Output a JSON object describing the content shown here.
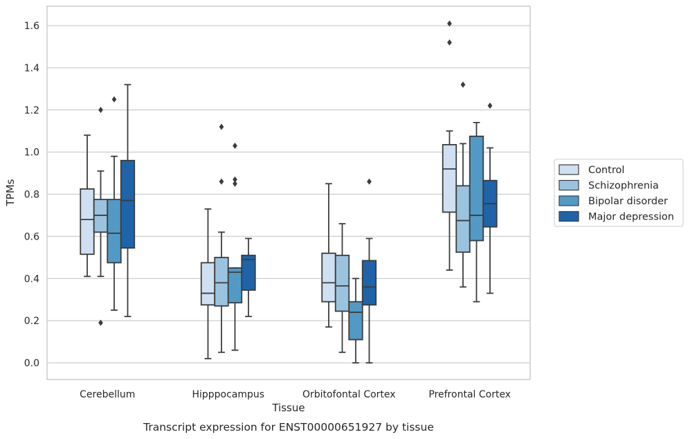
{
  "caption": "Transcript expression for ENST00000651927 by tissue",
  "chart_data": {
    "type": "boxplot",
    "xlabel": "Tissue",
    "ylabel": "TPMs",
    "ylim": [
      -0.08,
      1.69
    ],
    "yticks": [
      0.0,
      0.2,
      0.4,
      0.6,
      0.8,
      1.0,
      1.2,
      1.4,
      1.6
    ],
    "ytick_labels": [
      "0.0",
      "0.2",
      "0.4",
      "0.6",
      "0.8",
      "1.0",
      "1.2",
      "1.4",
      "1.6"
    ],
    "grid": "horizontal",
    "legend_position": "right",
    "categories": [
      "Cerebellum",
      "Hipppocampus",
      "Orbitofontal Cortex",
      "Prefrontal Cortex"
    ],
    "series": [
      {
        "name": "Control",
        "color": "#cfe0f2",
        "boxes": [
          {
            "whislo": 0.41,
            "q1": 0.515,
            "med": 0.68,
            "q3": 0.825,
            "whishi": 1.08,
            "fliers": []
          },
          {
            "whislo": 0.02,
            "q1": 0.275,
            "med": 0.33,
            "q3": 0.475,
            "whishi": 0.73,
            "fliers": []
          },
          {
            "whislo": 0.17,
            "q1": 0.29,
            "med": 0.38,
            "q3": 0.52,
            "whishi": 0.85,
            "fliers": []
          },
          {
            "whislo": 0.44,
            "q1": 0.715,
            "med": 0.92,
            "q3": 1.035,
            "whishi": 1.1,
            "fliers": [
              1.52,
              1.61
            ]
          }
        ]
      },
      {
        "name": "Schizophrenia",
        "color": "#9ac3df",
        "boxes": [
          {
            "whislo": 0.41,
            "q1": 0.62,
            "med": 0.7,
            "q3": 0.775,
            "whishi": 0.91,
            "fliers": [
              0.19,
              1.2
            ]
          },
          {
            "whislo": 0.05,
            "q1": 0.27,
            "med": 0.38,
            "q3": 0.5,
            "whishi": 0.62,
            "fliers": [
              0.86,
              1.12
            ]
          },
          {
            "whislo": 0.05,
            "q1": 0.245,
            "med": 0.365,
            "q3": 0.51,
            "whishi": 0.66,
            "fliers": []
          },
          {
            "whislo": 0.36,
            "q1": 0.525,
            "med": 0.675,
            "q3": 0.84,
            "whishi": 1.04,
            "fliers": [
              1.32
            ]
          }
        ]
      },
      {
        "name": "Bipolar disorder",
        "color": "#5399c6",
        "boxes": [
          {
            "whislo": 0.25,
            "q1": 0.475,
            "med": 0.615,
            "q3": 0.775,
            "whishi": 0.98,
            "fliers": [
              1.25
            ]
          },
          {
            "whislo": 0.06,
            "q1": 0.285,
            "med": 0.43,
            "q3": 0.45,
            "whishi": 0.45,
            "fliers": [
              0.85,
              0.87,
              1.03
            ]
          },
          {
            "whislo": 0.0,
            "q1": 0.11,
            "med": 0.24,
            "q3": 0.29,
            "whishi": 0.4,
            "fliers": []
          },
          {
            "whislo": 0.29,
            "q1": 0.58,
            "med": 0.7,
            "q3": 1.075,
            "whishi": 1.14,
            "fliers": []
          }
        ]
      },
      {
        "name": "Major depression",
        "color": "#1f63a8",
        "boxes": [
          {
            "whislo": 0.22,
            "q1": 0.545,
            "med": 0.77,
            "q3": 0.96,
            "whishi": 1.32,
            "fliers": []
          },
          {
            "whislo": 0.22,
            "q1": 0.345,
            "med": 0.49,
            "q3": 0.51,
            "whishi": 0.59,
            "fliers": []
          },
          {
            "whislo": 0.0,
            "q1": 0.275,
            "med": 0.36,
            "q3": 0.485,
            "whishi": 0.59,
            "fliers": [
              0.86
            ]
          },
          {
            "whislo": 0.33,
            "q1": 0.645,
            "med": 0.755,
            "q3": 0.865,
            "whishi": 1.02,
            "fliers": [
              1.22
            ]
          }
        ]
      }
    ]
  }
}
